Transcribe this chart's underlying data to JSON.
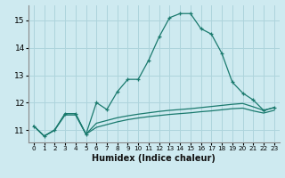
{
  "xlabel": "Humidex (Indice chaleur)",
  "background_color": "#ceeaf0",
  "grid_color": "#aed4dc",
  "line_color": "#1a7a6e",
  "xlim": [
    -0.5,
    23.5
  ],
  "ylim": [
    10.55,
    15.55
  ],
  "yticks": [
    11,
    12,
    13,
    14,
    15
  ],
  "xticks": [
    0,
    1,
    2,
    3,
    4,
    5,
    6,
    7,
    8,
    9,
    10,
    11,
    12,
    13,
    14,
    15,
    16,
    17,
    18,
    19,
    20,
    21,
    22,
    23
  ],
  "line1_x": [
    0,
    1,
    2,
    3,
    4,
    5,
    6,
    7,
    8,
    9,
    10,
    11,
    12,
    13,
    14,
    15,
    16,
    17,
    18,
    19,
    20,
    21,
    22,
    23
  ],
  "line1_y": [
    11.15,
    10.78,
    11.0,
    11.6,
    11.6,
    10.85,
    12.0,
    11.75,
    12.4,
    12.85,
    12.85,
    13.55,
    14.4,
    15.1,
    15.25,
    15.25,
    14.7,
    14.5,
    13.8,
    12.75,
    12.35,
    12.1,
    11.72,
    11.82
  ],
  "line2_x": [
    0,
    1,
    2,
    3,
    4,
    5,
    6,
    7,
    8,
    9,
    10,
    11,
    12,
    13,
    14,
    15,
    16,
    17,
    18,
    19,
    20,
    21,
    22,
    23
  ],
  "line2_y": [
    11.15,
    10.78,
    11.0,
    11.6,
    11.6,
    10.85,
    11.25,
    11.35,
    11.45,
    11.52,
    11.58,
    11.63,
    11.68,
    11.72,
    11.75,
    11.78,
    11.82,
    11.86,
    11.9,
    11.94,
    11.97,
    11.85,
    11.72,
    11.82
  ],
  "line3_x": [
    0,
    1,
    2,
    3,
    4,
    5,
    6,
    7,
    8,
    9,
    10,
    11,
    12,
    13,
    14,
    15,
    16,
    17,
    18,
    19,
    20,
    21,
    22,
    23
  ],
  "line3_y": [
    11.15,
    10.78,
    11.0,
    11.55,
    11.55,
    10.85,
    11.1,
    11.2,
    11.3,
    11.38,
    11.44,
    11.49,
    11.53,
    11.57,
    11.6,
    11.63,
    11.67,
    11.7,
    11.74,
    11.78,
    11.8,
    11.7,
    11.62,
    11.72
  ]
}
